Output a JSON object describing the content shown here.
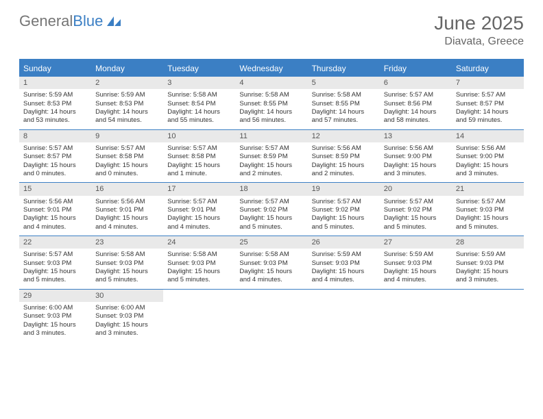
{
  "brand": {
    "part1": "General",
    "part2": "Blue"
  },
  "title": {
    "month": "June 2025",
    "location": "Diavata, Greece"
  },
  "theme": {
    "header_bg": "#3b7fc4",
    "header_text": "#ffffff",
    "daynum_bg": "#e9e9e9",
    "daynum_text": "#555555",
    "cell_text": "#333333",
    "title_text": "#666666",
    "page_bg": "#ffffff",
    "cell_font_size": 9.5,
    "columns": 7
  },
  "day_labels": [
    "Sunday",
    "Monday",
    "Tuesday",
    "Wednesday",
    "Thursday",
    "Friday",
    "Saturday"
  ],
  "days": [
    {
      "n": "1",
      "sr": "5:59 AM",
      "ss": "8:53 PM",
      "dl": "14 hours and 53 minutes."
    },
    {
      "n": "2",
      "sr": "5:59 AM",
      "ss": "8:53 PM",
      "dl": "14 hours and 54 minutes."
    },
    {
      "n": "3",
      "sr": "5:58 AM",
      "ss": "8:54 PM",
      "dl": "14 hours and 55 minutes."
    },
    {
      "n": "4",
      "sr": "5:58 AM",
      "ss": "8:55 PM",
      "dl": "14 hours and 56 minutes."
    },
    {
      "n": "5",
      "sr": "5:58 AM",
      "ss": "8:55 PM",
      "dl": "14 hours and 57 minutes."
    },
    {
      "n": "6",
      "sr": "5:57 AM",
      "ss": "8:56 PM",
      "dl": "14 hours and 58 minutes."
    },
    {
      "n": "7",
      "sr": "5:57 AM",
      "ss": "8:57 PM",
      "dl": "14 hours and 59 minutes."
    },
    {
      "n": "8",
      "sr": "5:57 AM",
      "ss": "8:57 PM",
      "dl": "15 hours and 0 minutes."
    },
    {
      "n": "9",
      "sr": "5:57 AM",
      "ss": "8:58 PM",
      "dl": "15 hours and 0 minutes."
    },
    {
      "n": "10",
      "sr": "5:57 AM",
      "ss": "8:58 PM",
      "dl": "15 hours and 1 minute."
    },
    {
      "n": "11",
      "sr": "5:57 AM",
      "ss": "8:59 PM",
      "dl": "15 hours and 2 minutes."
    },
    {
      "n": "12",
      "sr": "5:56 AM",
      "ss": "8:59 PM",
      "dl": "15 hours and 2 minutes."
    },
    {
      "n": "13",
      "sr": "5:56 AM",
      "ss": "9:00 PM",
      "dl": "15 hours and 3 minutes."
    },
    {
      "n": "14",
      "sr": "5:56 AM",
      "ss": "9:00 PM",
      "dl": "15 hours and 3 minutes."
    },
    {
      "n": "15",
      "sr": "5:56 AM",
      "ss": "9:01 PM",
      "dl": "15 hours and 4 minutes."
    },
    {
      "n": "16",
      "sr": "5:56 AM",
      "ss": "9:01 PM",
      "dl": "15 hours and 4 minutes."
    },
    {
      "n": "17",
      "sr": "5:57 AM",
      "ss": "9:01 PM",
      "dl": "15 hours and 4 minutes."
    },
    {
      "n": "18",
      "sr": "5:57 AM",
      "ss": "9:02 PM",
      "dl": "15 hours and 5 minutes."
    },
    {
      "n": "19",
      "sr": "5:57 AM",
      "ss": "9:02 PM",
      "dl": "15 hours and 5 minutes."
    },
    {
      "n": "20",
      "sr": "5:57 AM",
      "ss": "9:02 PM",
      "dl": "15 hours and 5 minutes."
    },
    {
      "n": "21",
      "sr": "5:57 AM",
      "ss": "9:03 PM",
      "dl": "15 hours and 5 minutes."
    },
    {
      "n": "22",
      "sr": "5:57 AM",
      "ss": "9:03 PM",
      "dl": "15 hours and 5 minutes."
    },
    {
      "n": "23",
      "sr": "5:58 AM",
      "ss": "9:03 PM",
      "dl": "15 hours and 5 minutes."
    },
    {
      "n": "24",
      "sr": "5:58 AM",
      "ss": "9:03 PM",
      "dl": "15 hours and 5 minutes."
    },
    {
      "n": "25",
      "sr": "5:58 AM",
      "ss": "9:03 PM",
      "dl": "15 hours and 4 minutes."
    },
    {
      "n": "26",
      "sr": "5:59 AM",
      "ss": "9:03 PM",
      "dl": "15 hours and 4 minutes."
    },
    {
      "n": "27",
      "sr": "5:59 AM",
      "ss": "9:03 PM",
      "dl": "15 hours and 4 minutes."
    },
    {
      "n": "28",
      "sr": "5:59 AM",
      "ss": "9:03 PM",
      "dl": "15 hours and 3 minutes."
    },
    {
      "n": "29",
      "sr": "6:00 AM",
      "ss": "9:03 PM",
      "dl": "15 hours and 3 minutes."
    },
    {
      "n": "30",
      "sr": "6:00 AM",
      "ss": "9:03 PM",
      "dl": "15 hours and 3 minutes."
    }
  ],
  "labels": {
    "sunrise": "Sunrise:",
    "sunset": "Sunset:",
    "daylight": "Daylight:"
  }
}
